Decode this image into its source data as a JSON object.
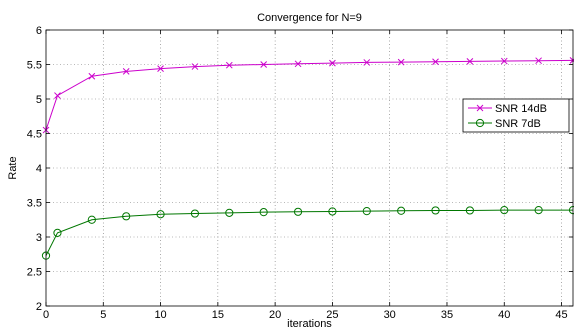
{
  "chart_data": {
    "type": "line",
    "title": "Convergence for N=9",
    "xlabel": "iterations",
    "ylabel": "Rate",
    "xlim": [
      0,
      46
    ],
    "ylim": [
      2,
      6
    ],
    "xticks": [
      0,
      5,
      10,
      15,
      20,
      25,
      30,
      35,
      40,
      45
    ],
    "yticks": [
      2,
      2.5,
      3,
      3.5,
      4,
      4.5,
      5,
      5.5,
      6
    ],
    "grid": true,
    "legend": "right",
    "series": [
      {
        "name": "SNR 14dB",
        "color": "#cc00cc",
        "marker": "x",
        "x": [
          0,
          1,
          4,
          7,
          10,
          13,
          16,
          19,
          22,
          25,
          28,
          31,
          34,
          37,
          40,
          43,
          46
        ],
        "y": [
          4.55,
          5.05,
          5.33,
          5.4,
          5.44,
          5.47,
          5.49,
          5.5,
          5.51,
          5.52,
          5.53,
          5.535,
          5.54,
          5.545,
          5.55,
          5.555,
          5.56
        ]
      },
      {
        "name": "SNR 7dB",
        "color": "#007700",
        "marker": "o",
        "x": [
          0,
          1,
          4,
          7,
          10,
          13,
          16,
          19,
          22,
          25,
          28,
          31,
          34,
          37,
          40,
          43,
          46
        ],
        "y": [
          2.73,
          3.06,
          3.25,
          3.3,
          3.33,
          3.34,
          3.35,
          3.36,
          3.365,
          3.37,
          3.375,
          3.38,
          3.385,
          3.385,
          3.39,
          3.39,
          3.39
        ]
      }
    ]
  }
}
